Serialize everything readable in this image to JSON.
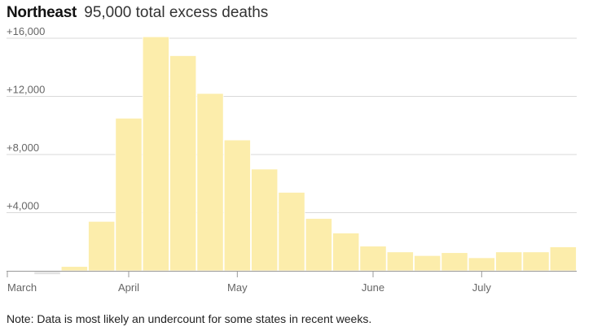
{
  "header": {
    "region": "Northeast",
    "subtitle": "95,000 total excess deaths"
  },
  "note": "Note: Data is most likely an undercount for some states in recent weeks.",
  "colors": {
    "bar_fill": "#fcedab",
    "bar_stroke": "#ffffff",
    "negative_fill": "#e2e2e2",
    "gridline": "#d9d9d9",
    "axis": "#999999"
  },
  "chart_data": {
    "type": "bar",
    "title": "Northeast",
    "subtitle": "95,000 total excess deaths",
    "xlabel": "",
    "ylabel": "",
    "ylim": [
      -300,
      16400
    ],
    "yticks": [
      {
        "value": 4000,
        "label": "+4,000"
      },
      {
        "value": 8000,
        "label": "+8,000"
      },
      {
        "value": 12000,
        "label": "+12,000"
      },
      {
        "value": 16000,
        "label": "+16,000"
      }
    ],
    "xticks": [
      {
        "index": 0,
        "label": "March"
      },
      {
        "index": 4,
        "label": "April"
      },
      {
        "index": 8,
        "label": "May"
      },
      {
        "index": 13,
        "label": "June"
      },
      {
        "index": 17,
        "label": "July"
      }
    ],
    "grid": true,
    "values": [
      0,
      -200,
      300,
      3400,
      10500,
      16100,
      14800,
      12200,
      9000,
      7000,
      5400,
      3600,
      2600,
      1700,
      1300,
      1050,
      1250,
      900,
      1300,
      1300,
      1650
    ]
  }
}
